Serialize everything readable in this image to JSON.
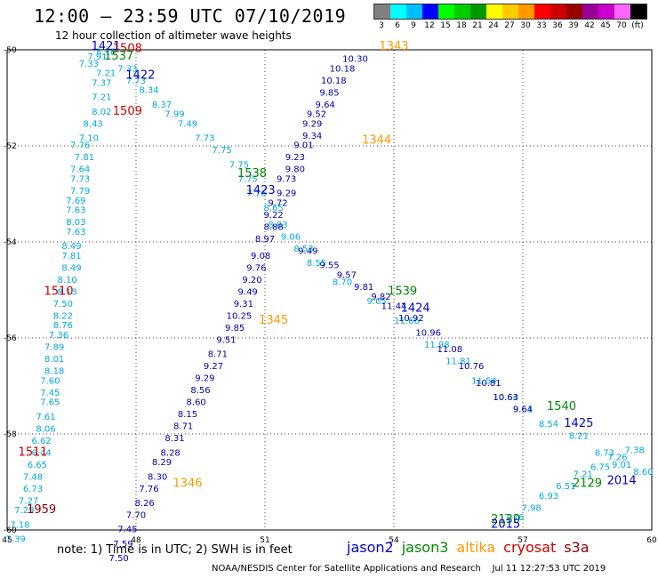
{
  "title": "12:00 – 23:59 UTC 07/10/2019",
  "subtitle": "12 hour collection of altimeter wave heights",
  "colorbar": {
    "labels": [
      "3",
      "6",
      "9",
      "12",
      "15",
      "18",
      "21",
      "24",
      "27",
      "30",
      "33",
      "36",
      "39",
      "42",
      "45",
      "70",
      "(ft)"
    ],
    "colors": [
      "#808080",
      "#00ffff",
      "#00bfff",
      "#0000ff",
      "#00ff00",
      "#00cc00",
      "#009900",
      "#ffff00",
      "#ffcc00",
      "#ff9900",
      "#ff0000",
      "#cc0000",
      "#990000",
      "#990099",
      "#cc00cc",
      "#ff66ff",
      "#000000"
    ]
  },
  "note": "note:  1) Time is in UTC;  2) SWH is in feet",
  "legend": [
    {
      "label": "jason2",
      "color": "#0000cc"
    },
    {
      "label": "jason3",
      "color": "#008800"
    },
    {
      "label": "altika",
      "color": "#ff9900"
    },
    {
      "label": "cryosat",
      "color": "#cc0000"
    },
    {
      "label": "s3a",
      "color": "#880000"
    }
  ],
  "credit": "NOAA/NESDIS Center for Satellite Applications and Research    Jul 11 12:27:53 UTC 2019",
  "chart_data": {
    "type": "scatter",
    "xlim": [
      45,
      60
    ],
    "ylim": [
      -60,
      -50
    ],
    "xticks": [
      "45",
      "48",
      "51",
      "54",
      "57",
      "60"
    ],
    "yticks": [
      "-50",
      "-52",
      "-54",
      "-56",
      "-58",
      "-60"
    ],
    "grid": true,
    "time_labels": [
      {
        "text": "1421",
        "x": 47.3,
        "y": -50.0,
        "color": "#0000cc"
      },
      {
        "text": "1508",
        "x": 47.8,
        "y": -50.05,
        "color": "#cc0000"
      },
      {
        "text": "1537",
        "x": 47.6,
        "y": -50.2,
        "color": "#008800"
      },
      {
        "text": "1422",
        "x": 48.1,
        "y": -50.6,
        "color": "#0000cc"
      },
      {
        "text": "1509",
        "x": 47.8,
        "y": -51.35,
        "color": "#cc0000"
      },
      {
        "text": "1538",
        "x": 50.7,
        "y": -52.65,
        "color": "#008800"
      },
      {
        "text": "1423",
        "x": 50.9,
        "y": -53.0,
        "color": "#0000cc"
      },
      {
        "text": "1343",
        "x": 54.0,
        "y": -50.0,
        "color": "#ff9900"
      },
      {
        "text": "1344",
        "x": 53.6,
        "y": -51.95,
        "color": "#ff9900"
      },
      {
        "text": "1539",
        "x": 54.2,
        "y": -55.1,
        "color": "#008800"
      },
      {
        "text": "1424",
        "x": 54.5,
        "y": -55.45,
        "color": "#0000cc"
      },
      {
        "text": "1510",
        "x": 46.2,
        "y": -55.1,
        "color": "#cc0000"
      },
      {
        "text": "1345",
        "x": 51.2,
        "y": -55.7,
        "color": "#ff9900"
      },
      {
        "text": "1540",
        "x": 57.9,
        "y": -57.5,
        "color": "#008800"
      },
      {
        "text": "1425",
        "x": 58.3,
        "y": -57.85,
        "color": "#0000cc"
      },
      {
        "text": "1511",
        "x": 45.6,
        "y": -58.45,
        "color": "#cc0000"
      },
      {
        "text": "1346",
        "x": 49.2,
        "y": -59.1,
        "color": "#ff9900"
      },
      {
        "text": "2014",
        "x": 59.3,
        "y": -59.05,
        "color": "#0000cc"
      },
      {
        "text": "2129",
        "x": 58.5,
        "y": -59.1,
        "color": "#008800"
      },
      {
        "text": "1959",
        "x": 45.8,
        "y": -59.65,
        "color": "#880000"
      },
      {
        "text": "2130",
        "x": 56.6,
        "y": -59.85,
        "color": "#008800"
      },
      {
        "text": "2015",
        "x": 56.6,
        "y": -59.95,
        "color": "#0000cc"
      }
    ],
    "tracks": [
      {
        "name": "cryosat_w",
        "color": "#00aadd",
        "points": [
          [
            47.3,
            -50.1,
            "8.16"
          ],
          [
            47.1,
            -50.2,
            "7.91"
          ],
          [
            46.9,
            -50.35,
            "7.33"
          ],
          [
            47.3,
            -50.55,
            "7.21"
          ],
          [
            47.2,
            -50.75,
            "7.37"
          ],
          [
            47.2,
            -51.05,
            "7.21"
          ],
          [
            47.2,
            -51.35,
            "8.02"
          ],
          [
            47.0,
            -51.6,
            "8.43"
          ],
          [
            46.9,
            -51.9,
            "7.10"
          ],
          [
            46.7,
            -52.05,
            "7.76"
          ],
          [
            46.8,
            -52.3,
            "7.81"
          ],
          [
            46.7,
            -52.55,
            "7.64"
          ],
          [
            46.7,
            -52.75,
            "7.73"
          ],
          [
            46.7,
            -53.0,
            "7.79"
          ],
          [
            46.6,
            -53.2,
            "7.69"
          ],
          [
            46.6,
            -53.4,
            "7.63"
          ],
          [
            46.6,
            -53.65,
            "8.03"
          ],
          [
            46.6,
            -53.85,
            "7.63"
          ],
          [
            46.5,
            -54.15,
            "8.49"
          ],
          [
            46.5,
            -54.35,
            "7.81"
          ],
          [
            46.5,
            -54.6,
            "8.49"
          ],
          [
            46.4,
            -54.85,
            "8.10"
          ],
          [
            46.4,
            -55.1,
            "8.13"
          ],
          [
            46.3,
            -55.35,
            "7.50"
          ],
          [
            46.3,
            -55.6,
            "8.22"
          ],
          [
            46.3,
            -55.8,
            "8.76"
          ],
          [
            46.2,
            -56.0,
            "7.36"
          ],
          [
            46.1,
            -56.25,
            "7.89"
          ],
          [
            46.1,
            -56.5,
            "8.01"
          ],
          [
            46.1,
            -56.75,
            "8.18"
          ],
          [
            46.0,
            -56.95,
            "7.60"
          ],
          [
            46.0,
            -57.2,
            "7.45"
          ],
          [
            46.0,
            -57.4,
            "7.65"
          ],
          [
            45.9,
            -57.7,
            "7.61"
          ],
          [
            45.9,
            -57.95,
            "8.06"
          ],
          [
            45.8,
            -58.2,
            "6.62"
          ],
          [
            45.8,
            -58.45,
            "6.44"
          ],
          [
            45.7,
            -58.7,
            "6.65"
          ],
          [
            45.6,
            -58.95,
            "7.48"
          ],
          [
            45.6,
            -59.2,
            "6.73"
          ],
          [
            45.5,
            -59.45,
            "7.27"
          ],
          [
            45.4,
            -59.65,
            "7.29"
          ],
          [
            45.3,
            -59.95,
            "7.18"
          ],
          [
            45.2,
            -60.25,
            "7.39"
          ]
        ]
      },
      {
        "name": "jason3_diag",
        "color": "#00aadd",
        "points": [
          [
            47.8,
            -50.45,
            "7.33"
          ],
          [
            48.0,
            -50.7,
            "7.73"
          ],
          [
            48.3,
            -50.9,
            "8.34"
          ],
          [
            48.6,
            -51.2,
            "8.37"
          ],
          [
            48.9,
            -51.4,
            "7.99"
          ],
          [
            49.2,
            -51.6,
            "7.49"
          ],
          [
            49.6,
            -51.9,
            "7.73"
          ],
          [
            50.0,
            -52.15,
            "7.75"
          ],
          [
            50.4,
            -52.45,
            "7.75"
          ],
          [
            50.6,
            -52.75,
            "7.75"
          ],
          [
            50.8,
            -53.05,
            "7.76"
          ],
          [
            51.2,
            -53.35,
            "8.65"
          ],
          [
            51.3,
            -53.7,
            "8.83"
          ],
          [
            51.6,
            -53.95,
            "9.06"
          ],
          [
            51.9,
            -54.2,
            "8.53"
          ]
        ]
      },
      {
        "name": "jason2_diag",
        "color": "#00aadd",
        "points": [
          [
            52.2,
            -54.5,
            "8.55"
          ],
          [
            52.8,
            -54.9,
            "8.70"
          ],
          [
            53.6,
            -55.3,
            "9.05"
          ],
          [
            54.3,
            -55.7,
            "11.66"
          ],
          [
            55.0,
            -56.2,
            "11.98"
          ],
          [
            55.5,
            -56.55,
            "11.81"
          ],
          [
            56.1,
            -56.95,
            "11.54"
          ],
          [
            56.6,
            -57.3,
            "10.64"
          ],
          [
            57.0,
            -57.55,
            "9.61"
          ],
          [
            57.6,
            -57.85,
            "8.54"
          ],
          [
            58.3,
            -58.1,
            "8.21"
          ],
          [
            58.9,
            -58.45,
            "8.73"
          ],
          [
            59.3,
            -58.7,
            "9.01"
          ],
          [
            59.8,
            -58.85,
            "8.60"
          ]
        ]
      },
      {
        "name": "altika_n",
        "color": "#0000aa",
        "points": [
          [
            53.1,
            -50.25,
            "10.30"
          ],
          [
            52.8,
            -50.45,
            "10.18"
          ],
          [
            52.6,
            -50.7,
            "10.18"
          ],
          [
            52.5,
            -50.95,
            "9.85"
          ],
          [
            52.4,
            -51.2,
            "9.64"
          ],
          [
            52.2,
            -51.4,
            "9.52"
          ],
          [
            52.1,
            -51.6,
            "9.29"
          ],
          [
            52.1,
            -51.85,
            "9.34"
          ],
          [
            51.9,
            -52.05,
            "9.01"
          ],
          [
            51.7,
            -52.3,
            "9.23"
          ],
          [
            51.7,
            -52.55,
            "9.80"
          ],
          [
            51.5,
            -52.75,
            "9.73"
          ],
          [
            51.5,
            -53.05,
            "9.29"
          ],
          [
            51.3,
            -53.25,
            "9.72"
          ],
          [
            51.2,
            -53.5,
            "9.22"
          ],
          [
            51.2,
            -53.75,
            "8.88"
          ],
          [
            51.0,
            -54.0,
            "8.97"
          ]
        ]
      },
      {
        "name": "altika_s",
        "color": "#0000aa",
        "points": [
          [
            50.9,
            -54.35,
            "9.08"
          ],
          [
            50.8,
            -54.6,
            "9.76"
          ],
          [
            50.7,
            -54.85,
            "9.20"
          ],
          [
            50.6,
            -55.1,
            "9.49"
          ],
          [
            50.5,
            -55.35,
            "9.31"
          ],
          [
            50.4,
            -55.6,
            "10.25"
          ],
          [
            50.3,
            -55.85,
            "9.85"
          ],
          [
            50.1,
            -56.1,
            "9.51"
          ],
          [
            49.9,
            -56.4,
            "8.71"
          ],
          [
            49.8,
            -56.65,
            "9.27"
          ],
          [
            49.6,
            -56.9,
            "9.29"
          ],
          [
            49.5,
            -57.15,
            "8.56"
          ],
          [
            49.4,
            -57.4,
            "8.60"
          ],
          [
            49.2,
            -57.65,
            "8.15"
          ],
          [
            49.1,
            -57.9,
            "8.71"
          ],
          [
            48.9,
            -58.15,
            "8.31"
          ],
          [
            48.8,
            -58.45,
            "8.28"
          ],
          [
            48.6,
            -58.65,
            "8.29"
          ],
          [
            48.5,
            -58.95,
            "8.30"
          ],
          [
            48.3,
            -59.2,
            "7.76"
          ],
          [
            48.2,
            -59.5,
            "8.26"
          ],
          [
            48.0,
            -59.75,
            "7.70"
          ],
          [
            47.8,
            -60.05,
            "7.45"
          ],
          [
            47.7,
            -60.35,
            "7.59"
          ],
          [
            47.6,
            -60.65,
            "7.50"
          ]
        ]
      },
      {
        "name": "jason2_diag_blue",
        "color": "#0000aa",
        "points": [
          [
            52.0,
            -54.25,
            "9.49"
          ],
          [
            52.5,
            -54.55,
            "9.55"
          ],
          [
            52.9,
            -54.75,
            "9.57"
          ],
          [
            53.3,
            -55.0,
            "9.81"
          ],
          [
            53.7,
            -55.2,
            "9.82"
          ],
          [
            54.0,
            -55.4,
            "11.44"
          ],
          [
            54.4,
            -55.65,
            "10.92"
          ],
          [
            54.8,
            -55.95,
            "10.96"
          ],
          [
            55.3,
            -56.3,
            "11.08"
          ],
          [
            55.8,
            -56.65,
            "10.76"
          ],
          [
            56.2,
            -57.0,
            "10.81"
          ],
          [
            56.6,
            -57.3,
            "10.63"
          ],
          [
            57.0,
            -57.55,
            "9.64"
          ]
        ]
      },
      {
        "name": "s3a_sw",
        "color": "#00aadd",
        "points": [
          [
            56.8,
            -59.8,
            "7.76"
          ],
          [
            57.2,
            -59.6,
            "7.98"
          ],
          [
            57.6,
            -59.35,
            "6.93"
          ],
          [
            58.0,
            -59.15,
            "6.51"
          ],
          [
            58.4,
            -58.9,
            "7.21"
          ],
          [
            58.8,
            -58.75,
            "6.75"
          ],
          [
            59.2,
            -58.55,
            "7.26"
          ],
          [
            59.6,
            -58.4,
            "7.38"
          ]
        ]
      }
    ]
  }
}
